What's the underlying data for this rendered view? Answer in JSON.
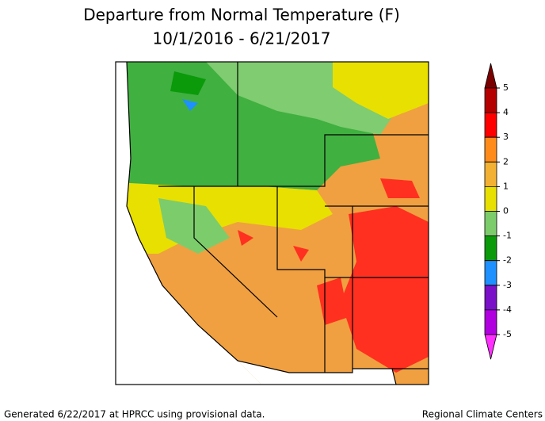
{
  "title_lines": [
    "Departure from Normal Temperature (F)",
    "10/1/2016 - 6/21/2017"
  ],
  "colorbar": {
    "ticks": [
      5,
      4,
      3,
      2,
      1,
      0,
      -1,
      -2,
      -3,
      -4,
      -5
    ],
    "colors": [
      "#7a0000",
      "#b40000",
      "#ff0000",
      "#ff8c1a",
      "#f2b133",
      "#e8e000",
      "#7ccc6c",
      "#0a9a0a",
      "#1e90ff",
      "#7a10c8",
      "#b000e0",
      "#ff30ff"
    ]
  },
  "footer": {
    "left": "Generated 6/22/2017 at HPRCC using provisional data.",
    "right": "Regional Climate Centers"
  }
}
